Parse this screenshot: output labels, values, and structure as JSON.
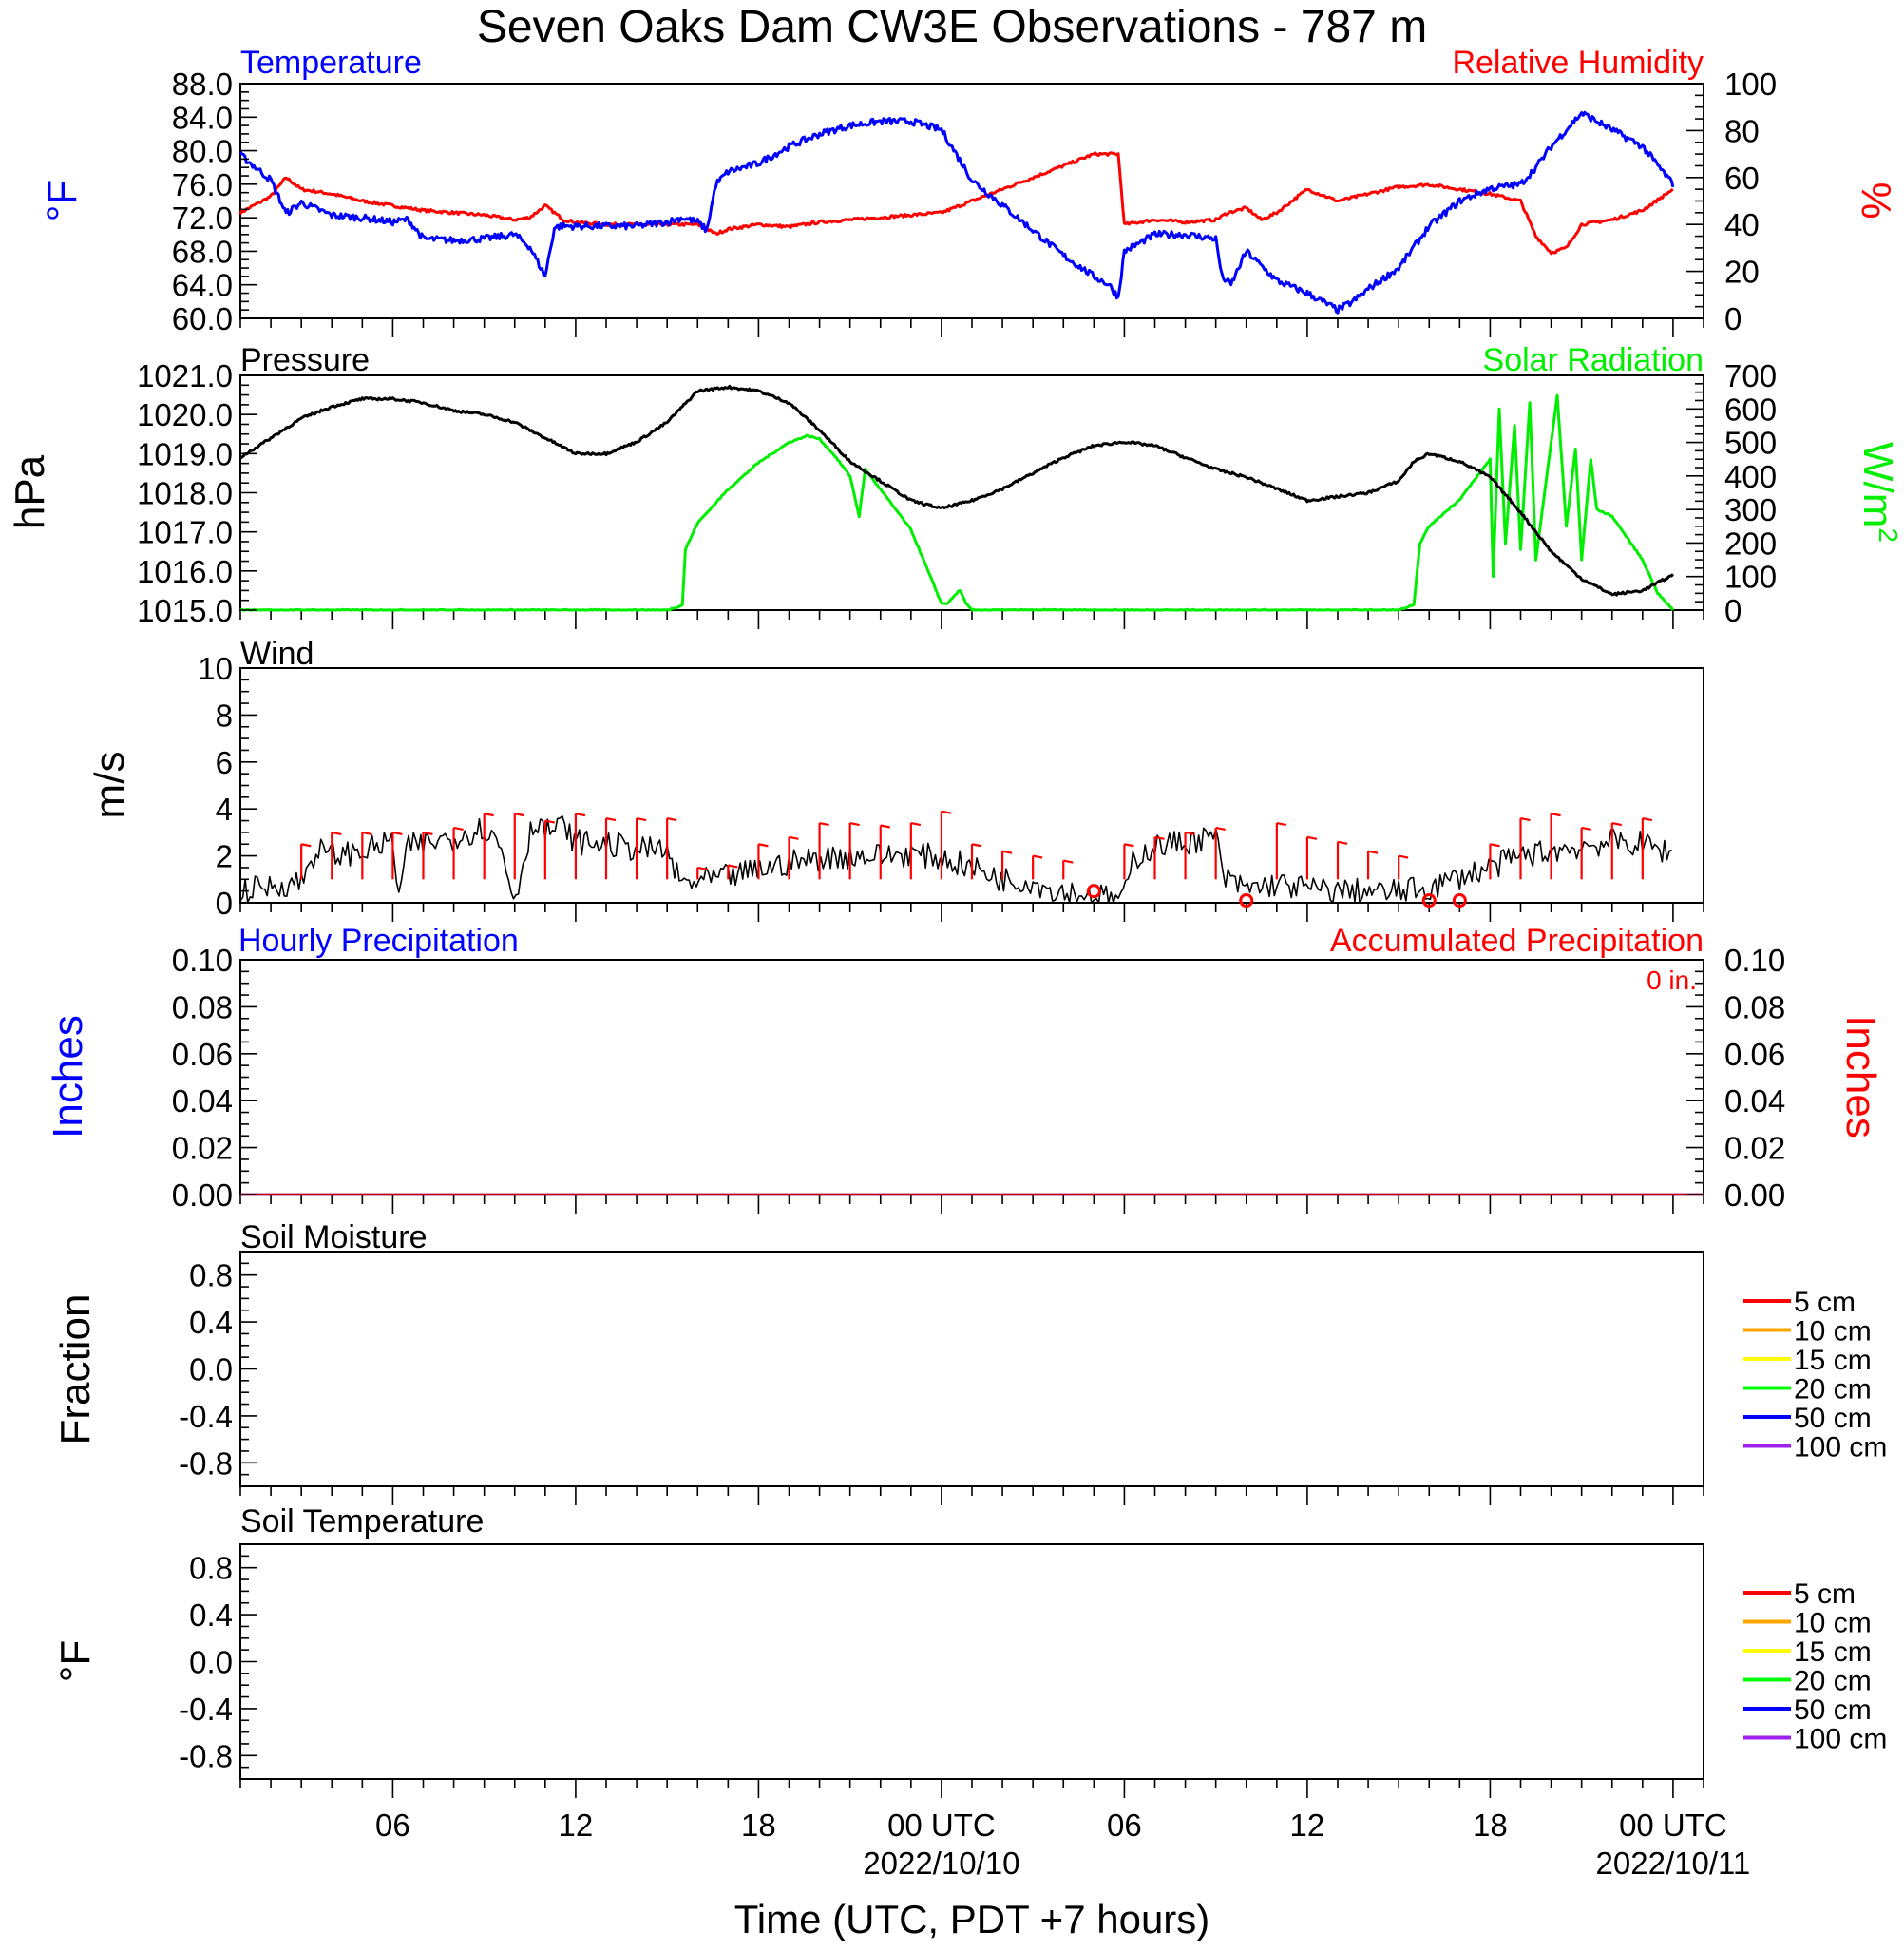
{
  "title": "Seven Oaks Dam CW3E Observations - 787 m",
  "x_axis": {
    "xlabel": "Time (UTC, PDT +7 hours)",
    "range_hours": [
      0,
      48
    ],
    "tick_hours": [
      5,
      11,
      17,
      23,
      29,
      35,
      41,
      47
    ],
    "tick_labels": [
      "06",
      "12",
      "18",
      "00 UTC",
      "06",
      "12",
      "18",
      "00 UTC"
    ],
    "date_labels": [
      {
        "hour": 23,
        "text": "2022/10/10"
      },
      {
        "hour": 47,
        "text": "2022/10/11"
      }
    ]
  },
  "colors": {
    "temperature": "#0000ff",
    "humidity": "#ff0000",
    "pressure": "#000000",
    "solar": "#00ee00",
    "wind": "#000000",
    "barbs": "#ff0000",
    "hourly_precip": "#0000ff",
    "accum_precip": "#cc0000"
  },
  "panels": {
    "temp": {
      "title_left": "Temperature",
      "title_right": "Relative Humidity",
      "ylabel_left": "°F",
      "ylabel_right": "%",
      "left_ticks": [
        "60.0",
        "64.0",
        "68.0",
        "72.0",
        "76.0",
        "80.0",
        "84.0",
        "88.0"
      ],
      "right_ticks": [
        "0",
        "20",
        "40",
        "60",
        "80",
        "100"
      ]
    },
    "pressure": {
      "title_left": "Pressure",
      "title_right": "Solar Radiation",
      "ylabel_left": "hPa",
      "ylabel_right": "W/m",
      "ylabel_right_sup": "2",
      "left_ticks": [
        "1015.0",
        "1016.0",
        "1017.0",
        "1018.0",
        "1019.0",
        "1020.0",
        "1021.0"
      ],
      "right_ticks": [
        "0",
        "100",
        "200",
        "300",
        "400",
        "500",
        "600",
        "700"
      ]
    },
    "wind": {
      "title_left": "Wind",
      "ylabel_left": "m/s",
      "left_ticks": [
        "0",
        "2",
        "4",
        "6",
        "8",
        "10"
      ]
    },
    "precip": {
      "title_left": "Hourly Precipitation",
      "title_right": "Accumulated Precipitation",
      "total_label": "0 in.",
      "ylabel_left": "Inches",
      "ylabel_right": "Inches",
      "left_ticks": [
        "0.00",
        "0.02",
        "0.04",
        "0.06",
        "0.08",
        "0.10"
      ],
      "right_ticks": [
        "0.00",
        "0.02",
        "0.04",
        "0.06",
        "0.08",
        "0.10"
      ]
    },
    "soil_moisture": {
      "title_left": "Soil Moisture",
      "ylabel_left": "Fraction",
      "left_ticks": [
        "-0.8",
        "-0.4",
        "0.0",
        "0.4",
        "0.8"
      ]
    },
    "soil_temp": {
      "title_left": "Soil Temperature",
      "ylabel_left": "°F",
      "left_ticks": [
        "-0.8",
        "-0.4",
        "0.0",
        "0.4",
        "0.8"
      ]
    }
  },
  "soil_legend": [
    {
      "label": "5 cm",
      "color": "#ff0000"
    },
    {
      "label": "10 cm",
      "color": "#ffa500"
    },
    {
      "label": "15 cm",
      "color": "#ffff00"
    },
    {
      "label": "20 cm",
      "color": "#00ff00"
    },
    {
      "label": "50 cm",
      "color": "#0000ff"
    },
    {
      "label": "100 cm",
      "color": "#a020f0"
    }
  ],
  "chart_data": [
    {
      "type": "line",
      "panel": "temp",
      "x_unit": "hours since 2022/10/09 01 UTC",
      "ylim_left": [
        60,
        88
      ],
      "ylim_right": [
        0,
        100
      ],
      "series": [
        {
          "name": "Temperature",
          "axis": "left",
          "x": [
            0,
            1,
            1.5,
            2,
            3,
            4,
            5,
            5.5,
            6,
            7,
            8,
            9,
            9.5,
            10,
            10.3,
            10.5,
            11,
            12,
            13,
            14,
            14.5,
            15,
            15.3,
            15.6,
            16,
            16.5,
            17,
            18,
            19,
            20,
            21,
            22,
            23,
            24,
            25,
            26,
            27,
            28,
            28.5,
            28.8,
            29,
            30,
            31,
            32,
            32.2,
            32.5,
            33,
            34,
            35,
            36,
            36.5,
            37,
            38,
            39,
            40,
            41,
            42,
            42.5,
            43,
            44,
            44.5,
            45,
            46,
            47
          ],
          "y": [
            79.5,
            76.5,
            72.5,
            73.8,
            72.3,
            72.0,
            71.5,
            71.8,
            69.5,
            69.3,
            69.5,
            70.0,
            68.5,
            65.0,
            70.8,
            71.0,
            71.0,
            71.0,
            71.0,
            71.5,
            72.0,
            71.5,
            70.5,
            76.0,
            77.5,
            78.0,
            78.5,
            80.5,
            82.0,
            83.0,
            83.5,
            83.5,
            82.5,
            76.5,
            73.5,
            70.5,
            67.5,
            65.0,
            64.0,
            62.5,
            68.0,
            70.0,
            70.0,
            69.5,
            65.0,
            64.0,
            68.0,
            64.5,
            63.0,
            61.0,
            62.0,
            63.5,
            66.0,
            71.0,
            74.0,
            75.5,
            76.0,
            78.0,
            80.5,
            84.5,
            83.5,
            82.5,
            80.5,
            76.0
          ]
        },
        {
          "name": "Relative Humidity",
          "axis": "right",
          "x": [
            0,
            1,
            1.5,
            2,
            3,
            4,
            5,
            6,
            7,
            8,
            9,
            9.5,
            10,
            10.3,
            10.6,
            11,
            12,
            13,
            14,
            15,
            15.6,
            16,
            17,
            18,
            19,
            20,
            21,
            22,
            23,
            24,
            25,
            26,
            27,
            28,
            28.5,
            28.8,
            29,
            30,
            31,
            32,
            32.4,
            33,
            33.5,
            34,
            35,
            36,
            37,
            38,
            39,
            40,
            41,
            42,
            42.5,
            43,
            43.5,
            44,
            45,
            46,
            47
          ],
          "y": [
            45,
            52,
            60,
            55,
            53,
            50,
            48,
            46,
            45,
            44,
            42,
            43,
            48,
            45,
            42,
            41,
            40,
            40,
            40,
            40,
            36,
            38,
            40,
            39,
            41,
            42,
            43,
            44,
            45,
            50,
            55,
            60,
            65,
            70,
            70,
            70,
            40,
            42,
            41,
            42,
            45,
            47,
            42,
            45,
            55,
            50,
            53,
            56,
            57,
            55,
            53,
            50,
            35,
            28,
            30,
            40,
            42,
            46,
            55
          ]
        }
      ]
    },
    {
      "type": "line",
      "panel": "pressure",
      "ylim_left": [
        1015,
        1021
      ],
      "ylim_right": [
        0,
        700
      ],
      "series": [
        {
          "name": "Pressure",
          "axis": "left",
          "x": [
            0,
            1,
            2,
            3,
            4,
            5,
            6,
            7,
            8,
            9,
            10,
            11,
            12,
            13,
            14,
            14.5,
            15,
            16,
            17,
            18,
            19,
            20,
            21,
            22,
            23,
            24,
            25,
            26,
            27,
            28,
            29,
            30,
            31,
            32,
            33,
            34,
            35,
            36,
            37,
            38,
            38.5,
            39,
            40,
            41,
            42,
            43,
            44,
            45,
            46,
            47
          ],
          "y": [
            1018.9,
            1019.4,
            1019.9,
            1020.2,
            1020.4,
            1020.4,
            1020.3,
            1020.1,
            1020.0,
            1019.8,
            1019.4,
            1019.0,
            1019.0,
            1019.3,
            1019.8,
            1020.2,
            1020.6,
            1020.7,
            1020.6,
            1020.3,
            1019.6,
            1018.8,
            1018.3,
            1017.8,
            1017.6,
            1017.8,
            1018.1,
            1018.5,
            1018.9,
            1019.2,
            1019.3,
            1019.2,
            1018.9,
            1018.6,
            1018.4,
            1018.1,
            1017.8,
            1017.9,
            1018.0,
            1018.3,
            1018.8,
            1019.0,
            1018.8,
            1018.4,
            1017.5,
            1016.5,
            1015.8,
            1015.4,
            1015.5,
            1015.9
          ]
        },
        {
          "name": "Solar Radiation",
          "axis": "right",
          "x": [
            0,
            14,
            14.5,
            14.6,
            15,
            16,
            17,
            18,
            18.6,
            19,
            19.5,
            20,
            20.3,
            20.5,
            21,
            22,
            22.5,
            23,
            23.2,
            23.6,
            23.8,
            24,
            38,
            38.5,
            38.7,
            39,
            40,
            41,
            41.1,
            41.3,
            41.5,
            41.8,
            42,
            42.3,
            42.5,
            43,
            43.2,
            43.5,
            43.8,
            44,
            44.3,
            44.5,
            45,
            46,
            46.5,
            47
          ],
          "y": [
            0,
            0,
            15,
            180,
            260,
            360,
            440,
            500,
            520,
            510,
            460,
            400,
            280,
            420,
            360,
            240,
            130,
            20,
            20,
            60,
            20,
            0,
            0,
            15,
            200,
            250,
            330,
            450,
            100,
            600,
            200,
            550,
            180,
            620,
            150,
            500,
            640,
            250,
            480,
            150,
            450,
            300,
            280,
            150,
            50,
            0
          ]
        }
      ]
    },
    {
      "type": "line",
      "panel": "wind",
      "ylim": [
        0,
        10
      ],
      "series": [
        {
          "name": "Wind",
          "x": [
            0,
            1,
            2,
            2.5,
            3,
            4,
            5,
            5.2,
            5.5,
            6,
            7,
            8,
            8.5,
            9,
            9.5,
            9.8,
            10,
            10.5,
            11,
            12,
            13,
            14,
            14.3,
            14.5,
            15,
            16,
            17,
            18,
            19,
            20,
            21,
            22,
            23,
            24,
            25,
            26,
            26.5,
            27,
            28,
            28.5,
            29,
            29.3,
            30,
            31,
            32,
            32.3,
            33,
            34,
            35,
            36,
            37,
            37.5,
            38,
            39,
            40,
            41,
            42,
            43,
            44,
            45,
            46,
            47
          ],
          "y": [
            0.5,
            0.7,
            0.9,
            2.3,
            2.0,
            2.2,
            2.6,
            0.3,
            2.4,
            2.5,
            2.8,
            3.2,
            2.5,
            0.1,
            3.0,
            3.6,
            3.0,
            3.3,
            2.6,
            2.5,
            2.3,
            2.2,
            1.2,
            0.8,
            0.9,
            1.1,
            1.4,
            1.7,
            1.9,
            2.0,
            2.0,
            2.1,
            1.9,
            1.5,
            1.0,
            0.9,
            0.6,
            0.5,
            0.3,
            0.2,
            0.2,
            1.9,
            2.4,
            2.6,
            2.8,
            1.0,
            0.6,
            0.8,
            0.6,
            0.5,
            0.5,
            0.4,
            0.5,
            0.6,
            1.1,
            1.5,
            2.0,
            2.2,
            2.4,
            2.6,
            2.5,
            2.1
          ]
        }
      ],
      "calm_circles_hours": [
        28,
        33,
        39,
        40
      ],
      "barb_hours": [
        2,
        3,
        4,
        5,
        6,
        7,
        8,
        9,
        10,
        11,
        12,
        13,
        14,
        15,
        16,
        17,
        18,
        19,
        20,
        21,
        22,
        23,
        24,
        25,
        26,
        27,
        29,
        30,
        31,
        32,
        34,
        35,
        36,
        37,
        38,
        41,
        42,
        43,
        44,
        45,
        46
      ],
      "barb_speeds": [
        2.5,
        3.0,
        3.0,
        3.0,
        3.0,
        3.2,
        3.8,
        3.8,
        3.5,
        3.8,
        3.6,
        3.6,
        3.6,
        1.5,
        1.6,
        2.5,
        2.8,
        3.4,
        3.4,
        3.3,
        3.4,
        3.9,
        2.5,
        2.2,
        2.0,
        1.8,
        2.5,
        2.8,
        3.0,
        3.2,
        3.4,
        2.8,
        2.6,
        2.2,
        2.0,
        2.5,
        3.6,
        3.8,
        3.2,
        3.4,
        3.6
      ]
    },
    {
      "type": "line",
      "panel": "precip",
      "ylim": [
        0,
        0.1
      ],
      "series": [
        {
          "name": "Hourly Precipitation",
          "x": [
            0,
            48
          ],
          "y": [
            0,
            0
          ]
        },
        {
          "name": "Accumulated Precipitation",
          "x": [
            0,
            48
          ],
          "y": [
            0,
            0
          ]
        }
      ]
    },
    {
      "type": "line",
      "panel": "soil_moisture",
      "ylim": [
        -1,
        1
      ],
      "series": []
    },
    {
      "type": "line",
      "panel": "soil_temp",
      "ylim": [
        -1,
        1
      ],
      "series": []
    }
  ]
}
